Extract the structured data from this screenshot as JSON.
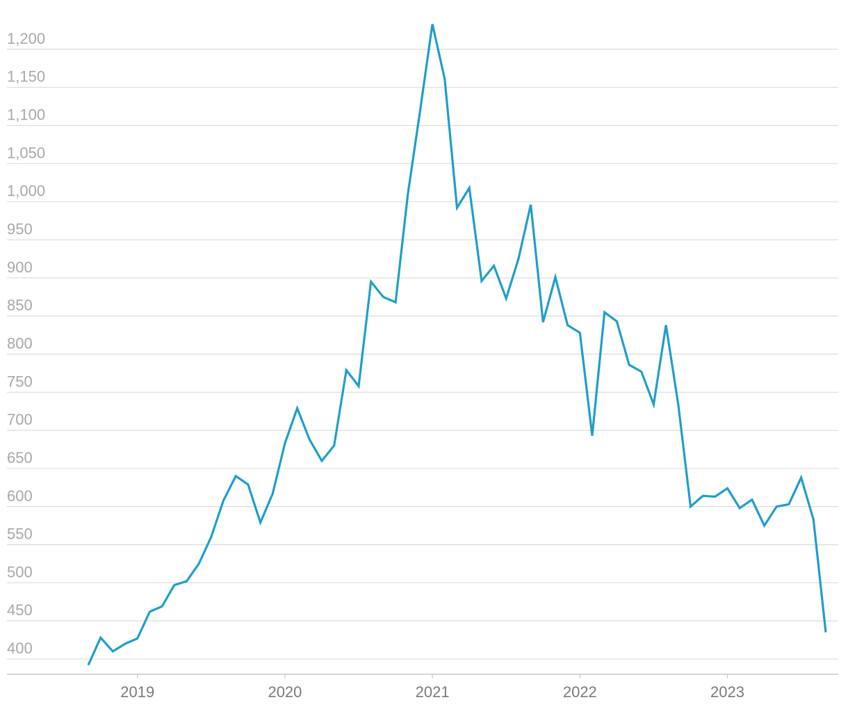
{
  "chart_data": {
    "type": "line",
    "title": "",
    "xlabel": "",
    "ylabel": "",
    "ylim": [
      380,
      1240
    ],
    "xlim": [
      "2018-09",
      "2023-09"
    ],
    "grid": true,
    "legend": "none",
    "y_ticks": [
      {
        "value": 400,
        "label": "400"
      },
      {
        "value": 450,
        "label": "450"
      },
      {
        "value": 500,
        "label": "500"
      },
      {
        "value": 550,
        "label": "550"
      },
      {
        "value": 600,
        "label": "600"
      },
      {
        "value": 650,
        "label": "650"
      },
      {
        "value": 700,
        "label": "700"
      },
      {
        "value": 750,
        "label": "750"
      },
      {
        "value": 800,
        "label": "800"
      },
      {
        "value": 850,
        "label": "850"
      },
      {
        "value": 900,
        "label": "900"
      },
      {
        "value": 950,
        "label": "950"
      },
      {
        "value": 1000,
        "label": "1,000"
      },
      {
        "value": 1050,
        "label": "1,050"
      },
      {
        "value": 1100,
        "label": "1,100"
      },
      {
        "value": 1150,
        "label": "1,150"
      },
      {
        "value": 1200,
        "label": "1,200"
      }
    ],
    "x_ticks": [
      {
        "value": "2019-01",
        "label": "2019"
      },
      {
        "value": "2020-01",
        "label": "2020"
      },
      {
        "value": "2021-01",
        "label": "2021"
      },
      {
        "value": "2022-01",
        "label": "2022"
      },
      {
        "value": "2023-01",
        "label": "2023"
      }
    ],
    "series": [
      {
        "color": "#1f9ecb",
        "x": [
          "2018-09",
          "2018-10",
          "2018-11",
          "2018-12",
          "2019-01",
          "2019-02",
          "2019-03",
          "2019-04",
          "2019-05",
          "2019-06",
          "2019-07",
          "2019-08",
          "2019-09",
          "2019-10",
          "2019-11",
          "2019-12",
          "2020-01",
          "2020-02",
          "2020-03",
          "2020-04",
          "2020-05",
          "2020-06",
          "2020-07",
          "2020-08",
          "2020-09",
          "2020-10",
          "2020-11",
          "2020-12",
          "2021-01",
          "2021-02",
          "2021-03",
          "2021-04",
          "2021-05",
          "2021-06",
          "2021-07",
          "2021-08",
          "2021-09",
          "2021-10",
          "2021-11",
          "2021-12",
          "2022-01",
          "2022-02",
          "2022-03",
          "2022-04",
          "2022-05",
          "2022-06",
          "2022-07",
          "2022-08",
          "2022-09",
          "2022-10",
          "2022-11",
          "2022-12",
          "2023-01",
          "2023-02",
          "2023-03",
          "2023-04",
          "2023-05",
          "2023-06",
          "2023-07",
          "2023-08",
          "2023-09"
        ],
        "y": [
          392,
          428,
          410,
          420,
          427,
          462,
          469,
          497,
          502,
          525,
          560,
          608,
          640,
          629,
          579,
          617,
          683,
          729,
          688,
          660,
          680,
          779,
          758,
          895,
          875,
          868,
          1010,
          1120,
          1233,
          1161,
          992,
          1018,
          896,
          916,
          873,
          925,
          996,
          842,
          901,
          838,
          828,
          693,
          855,
          843,
          786,
          777,
          734,
          838,
          734,
          600,
          614,
          613,
          624,
          598,
          609,
          575,
          600,
          603,
          638,
          583,
          435
        ]
      }
    ]
  }
}
